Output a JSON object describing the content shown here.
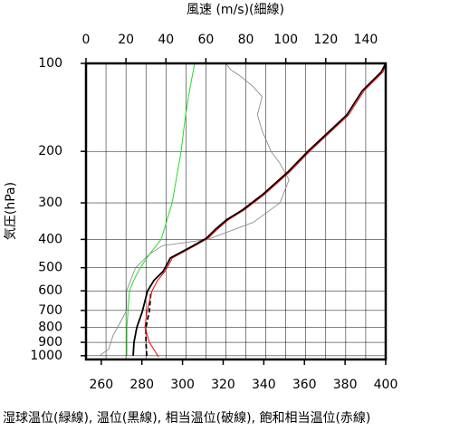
{
  "chart_data": {
    "type": "profile",
    "title": "風速 (m/s)(細線)",
    "ylabel": "気圧(hPa)",
    "caption": "湿球温位(緑線), 温位(黒線), 相当温位(破線), 飽和相当温位(赤線)",
    "ylim": [
      1030,
      100
    ],
    "log_y": true,
    "yticks": [
      100,
      200,
      300,
      400,
      500,
      600,
      700,
      800,
      900,
      1000
    ],
    "xlim": [
      252.5,
      400
    ],
    "xticks": [
      260,
      280,
      300,
      320,
      340,
      360,
      380,
      400
    ],
    "x2lim": [
      0,
      150
    ],
    "x2ticks": [
      0,
      20,
      40,
      60,
      80,
      100,
      120,
      140
    ],
    "x2grid": [
      10,
      20,
      30,
      40,
      50,
      60,
      70,
      80,
      90,
      100,
      110,
      120,
      130,
      140
    ],
    "grid": true,
    "series": [
      {
        "name": "風速",
        "color": "#808080",
        "width": 0.8,
        "dash": false,
        "axis": "x2",
        "pressure": [
          1000,
          950,
          850,
          800,
          700,
          600,
          500,
          450,
          420,
          400,
          350,
          300,
          250,
          220,
          200,
          170,
          150,
          130,
          120,
          110,
          105,
          100
        ],
        "values": [
          6.8,
          11.3,
          13.6,
          15.8,
          20.3,
          20.3,
          24.8,
          31.6,
          38.4,
          61,
          83.6,
          97.1,
          101.6,
          97.1,
          92.6,
          88.1,
          85.8,
          88.1,
          83.6,
          76.8,
          72.3,
          70
        ]
      },
      {
        "name": "湿球温位",
        "color": "#22dd22",
        "width": 1,
        "dash": false,
        "axis": "x",
        "pressure": [
          1000,
          800,
          600,
          550,
          500,
          450,
          400,
          300,
          200,
          150,
          120,
          100
        ],
        "values": [
          272.6,
          272.6,
          273.9,
          276.1,
          279.2,
          283.7,
          289.5,
          294.9,
          299.3,
          301.5,
          303.8,
          306
        ]
      },
      {
        "name": "相当温位",
        "color": "#000000",
        "width": 1.8,
        "dash": true,
        "axis": "x",
        "pressure": [
          1000,
          900,
          800,
          700,
          600
        ],
        "values": [
          282.4,
          282,
          282,
          283.7,
          284.5
        ]
      },
      {
        "name": "飽和相当温位",
        "color": "#ff0000",
        "width": 1,
        "dash": false,
        "axis": "x",
        "pressure": [
          1010,
          900,
          800,
          710,
          600,
          553,
          515,
          490,
          463,
          421,
          396,
          369,
          343,
          317,
          281,
          235,
          200,
          150,
          124,
          107,
          100
        ],
        "values": [
          288.2,
          283.7,
          281.5,
          282.4,
          285,
          287.7,
          291.3,
          293.1,
          295,
          306,
          312.7,
          317.2,
          322.5,
          330.5,
          340.3,
          352.8,
          362.6,
          381.8,
          389.4,
          398.7,
          400
        ]
      },
      {
        "name": "温位",
        "color": "#000000",
        "width": 1.8,
        "dash": false,
        "axis": "x",
        "pressure": [
          1000,
          900,
          800,
          710,
          600,
          553,
          515,
          490,
          463,
          421,
          396,
          369,
          343,
          317,
          281,
          235,
          200,
          150,
          124,
          107,
          100
        ],
        "values": [
          275.7,
          276.1,
          277.5,
          280.1,
          282.8,
          285.9,
          290.4,
          292.2,
          294,
          305.1,
          311.8,
          316.3,
          321.6,
          329.6,
          339.4,
          351.9,
          361.7,
          380.9,
          388.5,
          397.8,
          400
        ]
      }
    ]
  }
}
